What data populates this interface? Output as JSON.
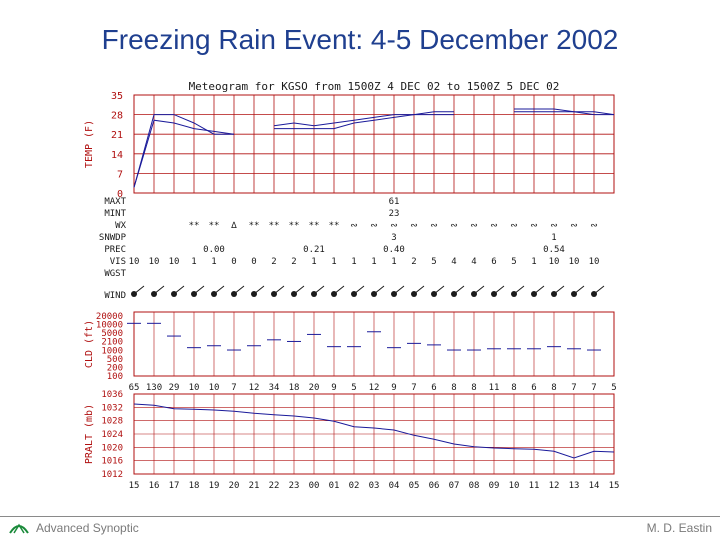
{
  "slide": {
    "title": "Freezing Rain Event: 4-5 December 2002",
    "footer_left": "Advanced Synoptic",
    "footer_right": "M. D. Eastin"
  },
  "colors": {
    "grid": "#b01010",
    "series": "#1a1a9a",
    "title": "#1f3f8f",
    "text": "#1a1a1a"
  },
  "chart_data": [
    {
      "type": "line",
      "title": "Meteogram for KGSO from 1500Z  4 DEC 02 to 1500Z  5 DEC 02",
      "ylabel": "TEMP (F)",
      "ylim": [
        0,
        35
      ],
      "yticks": [
        "35",
        "28",
        "21",
        "14",
        "7",
        "0"
      ],
      "x": [
        "15",
        "16",
        "17",
        "18",
        "19",
        "20",
        "21",
        "22",
        "23",
        "00",
        "01",
        "02",
        "03",
        "04",
        "05",
        "06",
        "07",
        "08",
        "09",
        "10",
        "11",
        "12",
        "13",
        "14",
        "15"
      ],
      "series": [
        {
          "values": [
            2,
            28,
            28,
            25,
            21,
            21,
            null,
            24,
            25,
            24,
            25,
            26,
            27,
            28,
            28,
            29,
            29,
            null,
            null,
            30,
            30,
            30,
            29,
            29,
            28
          ]
        },
        {
          "values": [
            2,
            26,
            25,
            23,
            22,
            21,
            null,
            23,
            23,
            23,
            23,
            25,
            26,
            27,
            28,
            28,
            28,
            null,
            null,
            29,
            29,
            29,
            29,
            28,
            28
          ]
        }
      ],
      "gaps": [
        3,
        4
      ]
    },
    {
      "type": "table",
      "rows": [
        {
          "label": "MAXT",
          "values": [
            "",
            "",
            "",
            "",
            "",
            "",
            "",
            "",
            "",
            "",
            "",
            "",
            "",
            "61",
            "",
            "",
            "",
            "",
            "",
            "",
            "",
            "",
            "",
            "",
            ""
          ]
        },
        {
          "label": "MINT",
          "values": [
            "",
            "",
            "",
            "",
            "",
            "",
            "",
            "",
            "",
            "",
            "",
            "",
            "",
            "23",
            "",
            "",
            "",
            "",
            "",
            "",
            "",
            "",
            "",
            "",
            ""
          ]
        },
        {
          "label": "WX",
          "values": [
            "",
            "",
            "",
            "**",
            "**",
            "∆",
            "**",
            "**",
            "**",
            "**",
            "**",
            "∾",
            "∾",
            "∾",
            "∾",
            "∾",
            "∾",
            "∾",
            "∾",
            "∾",
            "∾",
            "∾",
            "∾",
            "∾",
            ""
          ]
        },
        {
          "label": "SNWDP",
          "values": [
            "",
            "",
            "",
            "",
            "",
            "",
            "",
            "",
            "",
            "",
            "",
            "",
            "",
            "3",
            "",
            "",
            "",
            "",
            "",
            "",
            "",
            "1",
            "",
            "",
            ""
          ]
        },
        {
          "label": "PREC",
          "values": [
            "",
            "",
            "",
            "",
            "0.00",
            "",
            "",
            "",
            "",
            "0.21",
            "",
            "",
            "",
            "0.40",
            "",
            "",
            "",
            "",
            "",
            "",
            "",
            "0.54",
            "",
            "",
            ""
          ]
        },
        {
          "label": "VIS",
          "values": [
            "10",
            "10",
            "10",
            "1",
            "1",
            "0",
            "0",
            "2",
            "2",
            "1",
            "1",
            "1",
            "1",
            "1",
            "2",
            "5",
            "4",
            "4",
            "6",
            "5",
            "1",
            "10",
            "10",
            "10",
            ""
          ]
        },
        {
          "label": "WGST",
          "values": [
            "",
            "",
            "",
            "",
            "",
            "",
            "",
            "",
            "",
            "",
            "",
            "",
            "",
            "",
            "",
            "",
            "",
            "",
            "",
            "",
            "",
            "",
            "",
            "",
            ""
          ]
        },
        {
          "label": "WIND",
          "values": [
            "",
            "",
            "",
            "",
            "",
            "",
            "",
            "",
            "",
            "",
            "",
            "",
            "",
            "",
            "",
            "",
            "",
            "",
            "",
            "",
            "",
            "",
            "",
            "",
            ""
          ]
        }
      ]
    },
    {
      "type": "scatter",
      "ylabel": "CLD (ft)",
      "yticks": [
        "20000",
        "10000",
        "5000",
        "2100",
        "1000",
        "500",
        "200",
        "100"
      ],
      "layers": [
        {
          "x": [
            "15",
            "16",
            "17",
            "18",
            "19",
            "20",
            "21",
            "22",
            "23",
            "00",
            "01",
            "02",
            "03",
            "04",
            "05",
            "06",
            "07",
            "08",
            "09",
            "10",
            "11",
            "12",
            "13",
            "14"
          ],
          "values": [
            10000,
            10000,
            3000,
            1000,
            1200,
            800,
            1200,
            2100,
            1800,
            3500,
            1100,
            1100,
            4500,
            1000,
            1500,
            1300,
            800,
            800,
            900,
            900,
            900,
            1100,
            900,
            800
          ]
        }
      ]
    },
    {
      "type": "line",
      "ylabel": "PRALT (mb)",
      "ylim": [
        1012,
        1036
      ],
      "yticks": [
        "1036",
        "1032",
        "1028",
        "1024",
        "1020",
        "1016",
        "1012"
      ],
      "x_top_labels": [
        "65",
        "130",
        "29",
        "10",
        "10",
        "7",
        "12",
        "34",
        "18",
        "20",
        "9",
        "5",
        "12",
        "9",
        "7",
        "6",
        "8",
        "8",
        "11",
        "8",
        "6",
        "8",
        "7",
        "7",
        "5"
      ],
      "x": [
        "15",
        "16",
        "17",
        "18",
        "19",
        "20",
        "21",
        "22",
        "23",
        "00",
        "01",
        "02",
        "03",
        "04",
        "05",
        "06",
        "07",
        "08",
        "09",
        "10",
        "11",
        "12",
        "13",
        "14",
        "15"
      ],
      "series": [
        {
          "values": [
            1033,
            1032.6,
            1031.6,
            1031.4,
            1031.2,
            1030.8,
            1030.2,
            1029.8,
            1029.4,
            1028.8,
            1027.8,
            1026.2,
            1025.8,
            1025.2,
            1023.6,
            1022.4,
            1021.0,
            1020.2,
            1019.8,
            1019.6,
            1019.4,
            1018.8,
            1016.8,
            1018.8,
            1018.6
          ]
        }
      ]
    }
  ]
}
